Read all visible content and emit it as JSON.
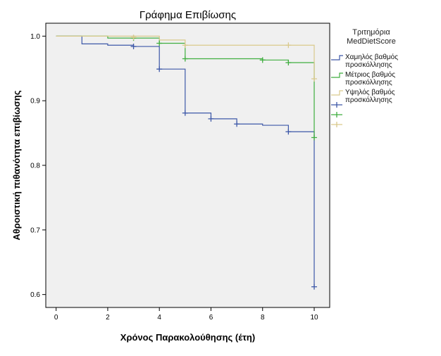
{
  "chart_data": {
    "type": "line",
    "title": "Γράφημα Επιβίωσης",
    "xlabel": "Χρόνος Παρακολούθησης (έτη)",
    "ylabel": "Αθροιστική πιθανότητα επιβίωσης",
    "xlim": [
      -0.4,
      10.6
    ],
    "ylim": [
      0.58,
      1.02
    ],
    "x_ticks": [
      0,
      2,
      4,
      6,
      8,
      10
    ],
    "y_ticks": [
      0.6,
      0.7,
      0.8,
      0.9,
      1.0
    ],
    "grid": false,
    "legend_title": "Τριτημόρια MedDietScore",
    "legend_position": "right",
    "series": [
      {
        "name": "Χαμηλός βαθμός προσκόλλησης",
        "color": "#3d58a8",
        "steps": [
          [
            0,
            1.0
          ],
          [
            1,
            0.988
          ],
          [
            2,
            0.986
          ],
          [
            3,
            0.984
          ],
          [
            4,
            0.949
          ],
          [
            5,
            0.881
          ],
          [
            6,
            0.872
          ],
          [
            7,
            0.864
          ],
          [
            8,
            0.862
          ],
          [
            9,
            0.852
          ],
          [
            10,
            0.612
          ]
        ],
        "censored": [
          [
            3,
            0.984
          ],
          [
            4,
            0.949
          ],
          [
            5,
            0.881
          ],
          [
            6,
            0.872
          ],
          [
            7,
            0.864
          ],
          [
            9,
            0.852
          ],
          [
            10,
            0.612
          ]
        ]
      },
      {
        "name": "Μέτριος βαθμός προσκόλλησης",
        "color": "#3fae3f",
        "steps": [
          [
            0,
            1.0
          ],
          [
            2,
            0.997
          ],
          [
            4,
            0.989
          ],
          [
            5,
            0.965
          ],
          [
            8,
            0.963
          ],
          [
            9,
            0.959
          ],
          [
            10,
            0.843
          ]
        ],
        "censored": [
          [
            3,
            0.997
          ],
          [
            4,
            0.989
          ],
          [
            5,
            0.965
          ],
          [
            8,
            0.963
          ],
          [
            9,
            0.959
          ],
          [
            10,
            0.843
          ]
        ]
      },
      {
        "name": "Υψηλός βαθμός προσκόλλησης",
        "color": "#d9c98c",
        "steps": [
          [
            0,
            1.0
          ],
          [
            4,
            0.994
          ],
          [
            5,
            0.986
          ],
          [
            10,
            0.934
          ]
        ],
        "censored": [
          [
            3,
            0.998
          ],
          [
            5,
            0.986
          ],
          [
            9,
            0.986
          ],
          [
            10,
            0.934
          ]
        ]
      }
    ],
    "legend_entries": [
      {
        "label_line1": "Χαμηλός βαθμός",
        "label_line2": "προσκόλλησης",
        "series_index": 0
      },
      {
        "label_line1": "Μέτριος βαθμός",
        "label_line2": "προσκόλλησης",
        "series_index": 1
      },
      {
        "label_line1": "Υψηλός βαθμός",
        "label_line2": "προσκόλλησης",
        "series_index": 2
      }
    ],
    "legend_title_line1": "Τριτημόρια",
    "legend_title_line2": "MedDietScore",
    "plot_background": "#f0f0f0",
    "page_background": "#ffffff"
  }
}
